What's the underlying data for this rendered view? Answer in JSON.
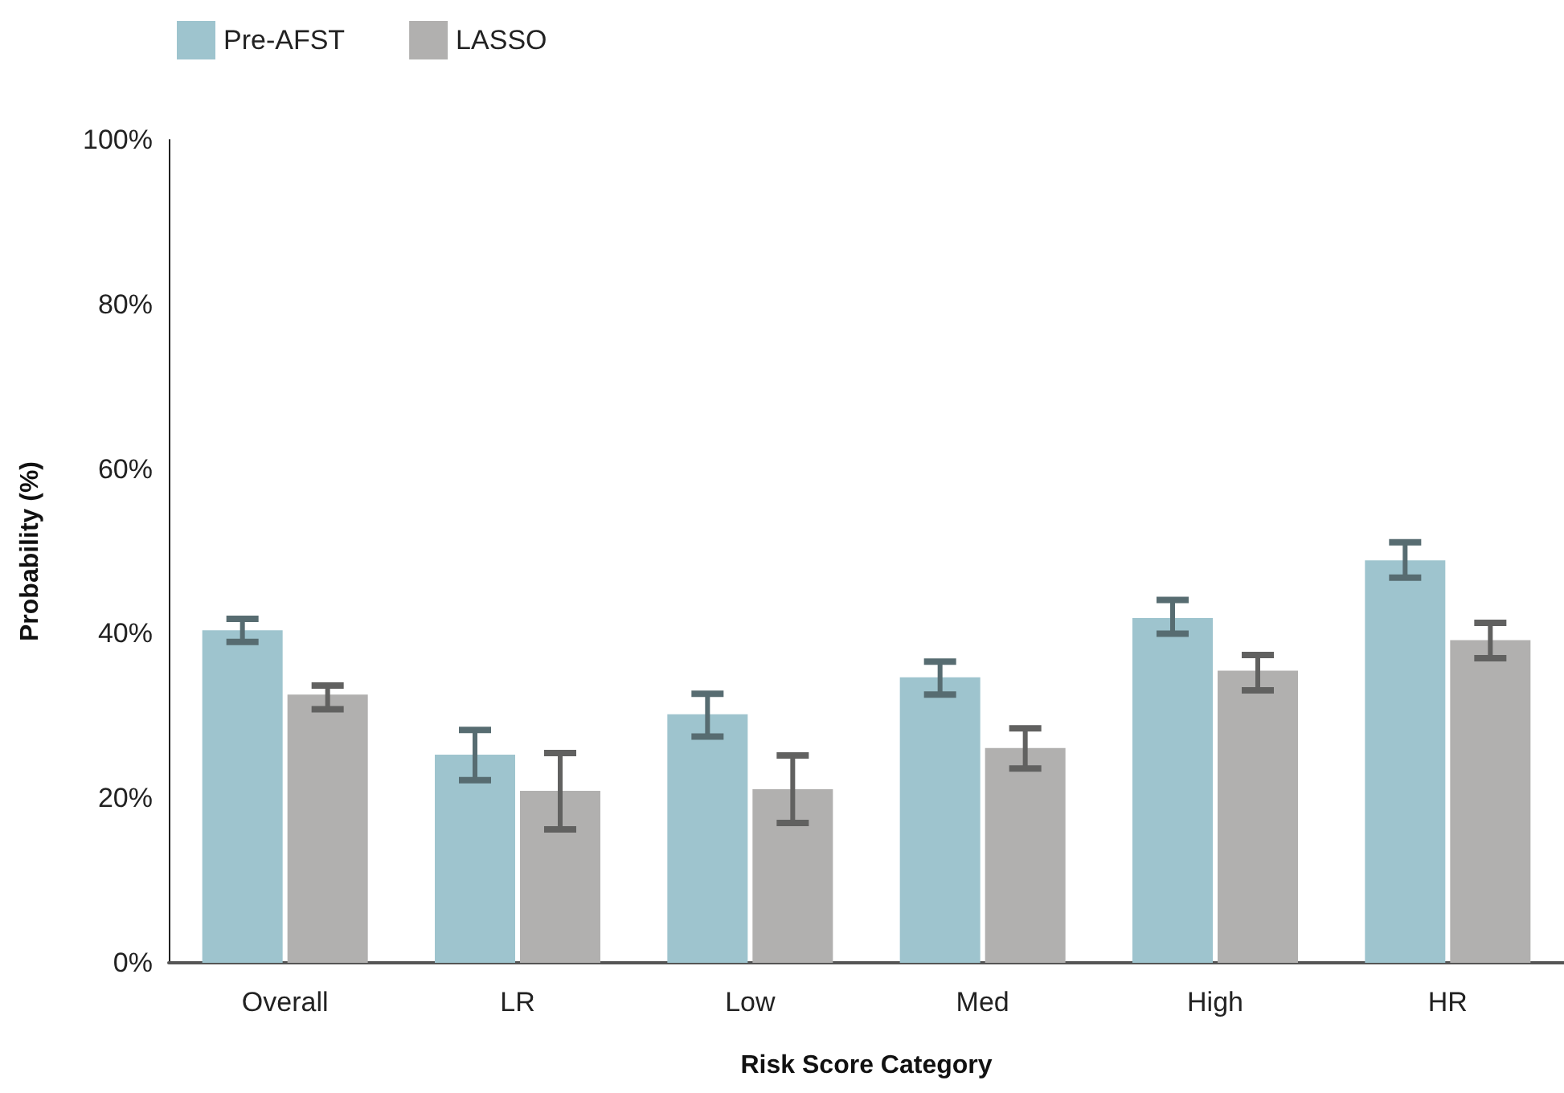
{
  "chart_data": {
    "type": "bar",
    "xlabel": "Risk Score Category",
    "ylabel": "Probability (%)",
    "categories": [
      "Overall",
      "LR",
      "Low",
      "Med",
      "High",
      "HR"
    ],
    "series": [
      {
        "name": "Pre-AFST",
        "color": "#9ec4ce",
        "values": [
          40.4,
          25.3,
          30.2,
          34.7,
          41.9,
          48.9
        ],
        "errors": [
          [
            39.0,
            41.8
          ],
          [
            22.2,
            28.3
          ],
          [
            27.5,
            32.7
          ],
          [
            32.6,
            36.6
          ],
          [
            40.0,
            44.1
          ],
          [
            46.8,
            51.1
          ]
        ]
      },
      {
        "name": "LASSO",
        "color": "#b1b0af",
        "values": [
          32.6,
          20.9,
          21.1,
          26.1,
          35.5,
          39.2
        ],
        "errors": [
          [
            30.8,
            33.7
          ],
          [
            16.2,
            25.5
          ],
          [
            17.0,
            25.2
          ],
          [
            23.6,
            28.5
          ],
          [
            33.1,
            37.4
          ],
          [
            37.0,
            41.3
          ]
        ]
      }
    ],
    "ylim": [
      0,
      100
    ],
    "yticks": [
      {
        "value": 0,
        "label": "0%"
      },
      {
        "value": 20,
        "label": "20%"
      },
      {
        "value": 40,
        "label": "40%"
      },
      {
        "value": 60,
        "label": "60%"
      },
      {
        "value": 80,
        "label": "80%"
      },
      {
        "value": 100,
        "label": "100%"
      }
    ],
    "grid": false,
    "legend": "top left"
  }
}
